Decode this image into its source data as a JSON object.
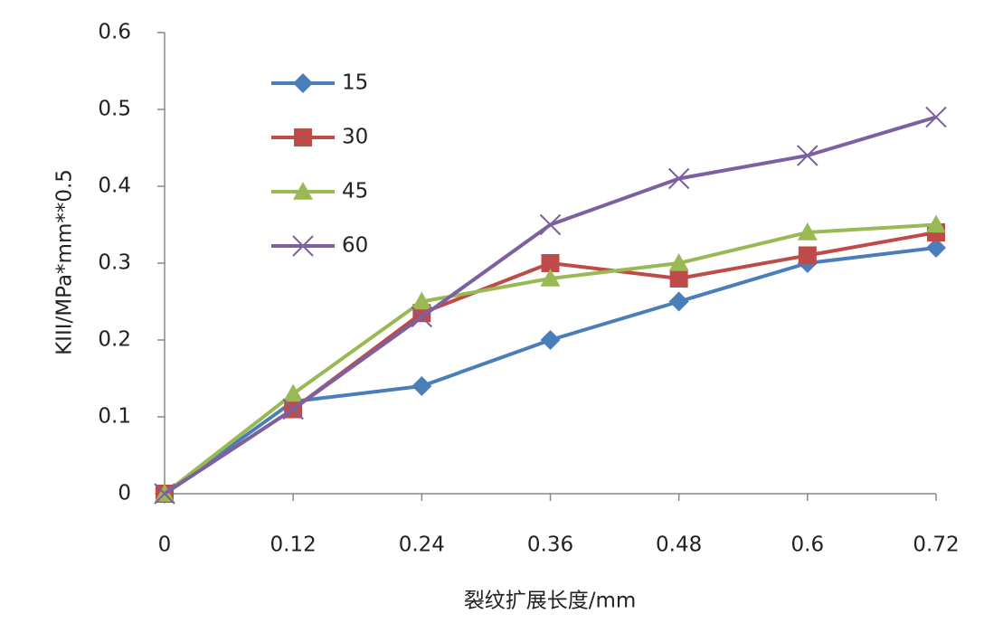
{
  "chart_data": {
    "type": "line",
    "x_label": "裂纹扩展长度/mm",
    "y_label": "KIII/MPa*mm**0.5",
    "x": [
      0,
      0.12,
      0.24,
      0.36,
      0.48,
      0.6,
      0.72
    ],
    "xlim": [
      0,
      0.72
    ],
    "xticks": [
      0,
      0.12,
      0.24,
      0.36,
      0.48,
      0.6,
      0.72
    ],
    "ylim": [
      0,
      0.6
    ],
    "yticks": [
      0,
      0.1,
      0.2,
      0.3,
      0.4,
      0.5,
      0.6
    ],
    "grid": false,
    "legend": "upper left",
    "series": [
      {
        "name": "15",
        "color": "#4a7ebb",
        "marker": "diamond",
        "values": [
          0,
          0.12,
          0.14,
          0.2,
          0.25,
          0.3,
          0.32
        ]
      },
      {
        "name": "30",
        "color": "#be4b48",
        "marker": "square",
        "values": [
          0,
          0.11,
          0.235,
          0.3,
          0.28,
          0.31,
          0.34
        ]
      },
      {
        "name": "45",
        "color": "#98b954",
        "marker": "triangle",
        "values": [
          0,
          0.13,
          0.25,
          0.28,
          0.3,
          0.34,
          0.35
        ]
      },
      {
        "name": "60",
        "color": "#7d60a0",
        "marker": "x",
        "values": [
          0,
          0.11,
          0.23,
          0.35,
          0.41,
          0.44,
          0.49
        ]
      }
    ]
  }
}
